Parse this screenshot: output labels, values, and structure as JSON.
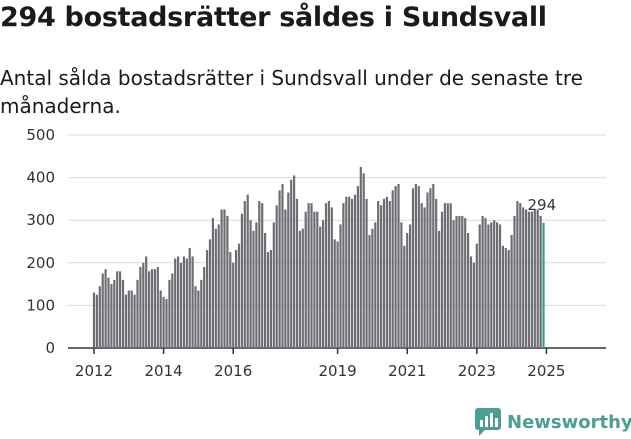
{
  "title": "294 bostadsrätter såldes i Sundsvall",
  "subtitle": "Antal sålda bostadsrätter i Sundsvall under de senaste tre månaderna.",
  "brand": "Newsworthy",
  "colors": {
    "bar": "#6e6d73",
    "highlight": "#3d9a8c",
    "brand": "#4a9e94",
    "grid": "#d9d9d9"
  },
  "chart_data": {
    "type": "bar",
    "title": "294 bostadsrätter såldes i Sundsvall",
    "subtitle": "Antal sålda bostadsrätter i Sundsvall under de senaste tre månaderna.",
    "xlabel": "",
    "ylabel": "",
    "ylim": [
      0,
      500
    ],
    "yticks": [
      0,
      100,
      200,
      300,
      400,
      500
    ],
    "xticks": [
      "2012",
      "2014",
      "2016",
      "2019",
      "2021",
      "2023",
      "2025"
    ],
    "grid": true,
    "legend": "none",
    "annotation": {
      "label": "294",
      "value": 294
    },
    "start": "2012-01",
    "frequency": "monthly, rolling three-month total",
    "values": [
      130,
      125,
      145,
      175,
      185,
      165,
      150,
      160,
      180,
      180,
      160,
      125,
      135,
      135,
      125,
      160,
      190,
      200,
      215,
      180,
      185,
      185,
      190,
      135,
      120,
      115,
      160,
      175,
      210,
      215,
      200,
      215,
      210,
      235,
      215,
      145,
      135,
      160,
      190,
      230,
      255,
      305,
      280,
      290,
      325,
      325,
      310,
      225,
      200,
      230,
      245,
      315,
      345,
      360,
      300,
      275,
      295,
      345,
      340,
      270,
      225,
      230,
      295,
      335,
      370,
      385,
      325,
      365,
      395,
      405,
      350,
      275,
      280,
      320,
      340,
      340,
      320,
      320,
      285,
      300,
      340,
      345,
      330,
      255,
      250,
      290,
      340,
      355,
      355,
      350,
      360,
      380,
      425,
      410,
      350,
      265,
      280,
      295,
      345,
      335,
      350,
      355,
      345,
      370,
      380,
      385,
      295,
      240,
      270,
      290,
      375,
      385,
      380,
      340,
      330,
      365,
      375,
      385,
      350,
      275,
      320,
      340,
      340,
      340,
      300,
      310,
      310,
      310,
      305,
      270,
      215,
      200,
      245,
      290,
      310,
      305,
      290,
      295,
      300,
      295,
      290,
      240,
      235,
      230,
      265,
      310,
      345,
      340,
      330,
      325,
      320,
      320,
      325,
      325,
      310,
      294
    ]
  }
}
